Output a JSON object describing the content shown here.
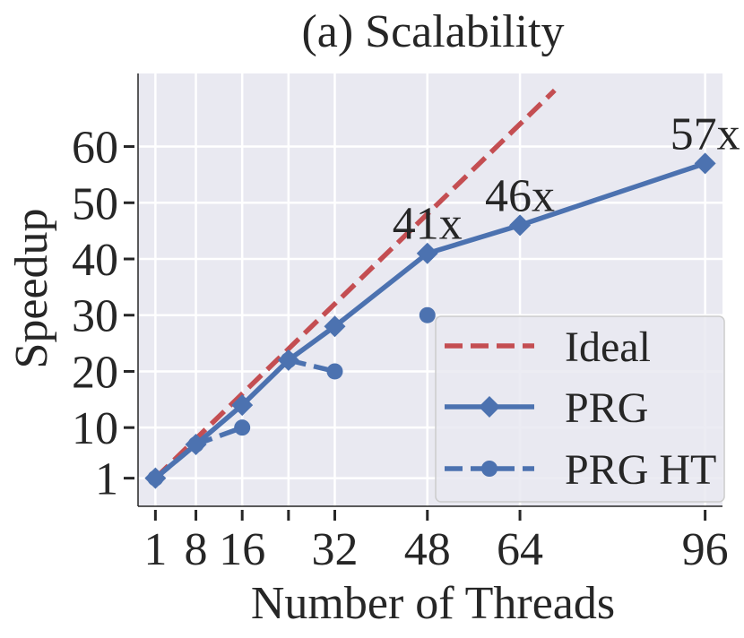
{
  "chart_data": {
    "type": "line",
    "title": "(a) Scalability",
    "xlabel": "Number of Threads",
    "ylabel": "Speedup",
    "xlim": [
      -2,
      99
    ],
    "ylim": [
      -4,
      73
    ],
    "x_ticks": [
      1,
      8,
      16,
      24,
      32,
      48,
      64,
      96
    ],
    "x_tick_labels": [
      "1",
      "8",
      "16",
      "",
      "32",
      "48",
      "64",
      "96"
    ],
    "y_ticks": [
      1,
      10,
      20,
      30,
      40,
      50,
      60
    ],
    "y_tick_labels": [
      "1",
      "10",
      "20",
      "30",
      "40",
      "50",
      "60"
    ],
    "grid": true,
    "background": "#e9e9f1",
    "legend_position": "lower-right",
    "series": [
      {
        "name": "Ideal",
        "color": "#c44e52",
        "style": "dashed",
        "marker": "none",
        "x": [
          1,
          70
        ],
        "y": [
          1,
          70
        ]
      },
      {
        "name": "PRG",
        "color": "#4c72b0",
        "style": "solid",
        "marker": "diamond",
        "x": [
          1,
          8,
          16,
          24,
          32,
          48,
          64,
          96
        ],
        "y": [
          1,
          7,
          14,
          22,
          28,
          41,
          46,
          57
        ]
      },
      {
        "name": "PRG HT",
        "color": "#4c72b0",
        "style": "dashed",
        "marker": "circle",
        "segments": [
          {
            "x": [
              1,
              8,
              16
            ],
            "y": [
              1,
              7,
              10
            ]
          },
          {
            "x": [
              24,
              32
            ],
            "y": [
              22,
              20
            ]
          },
          {
            "x": [
              48
            ],
            "y": [
              30
            ]
          }
        ]
      }
    ],
    "annotations": [
      {
        "text": "41x",
        "x": 48,
        "y": 41
      },
      {
        "text": "46x",
        "x": 64,
        "y": 46
      },
      {
        "text": "57x",
        "x": 96,
        "y": 57
      }
    ]
  }
}
